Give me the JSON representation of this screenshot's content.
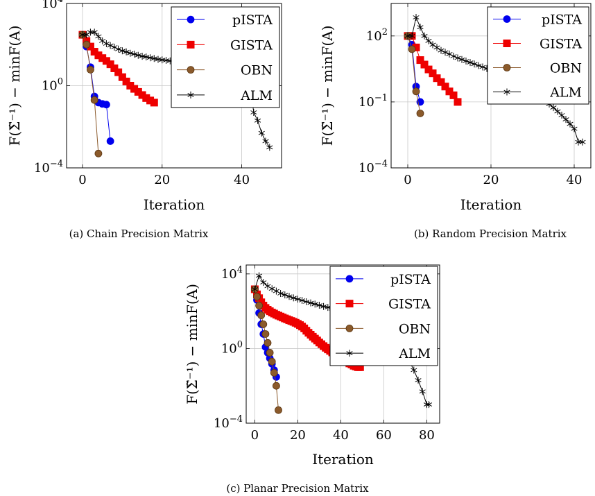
{
  "chart_data": [
    {
      "type": "line",
      "caption": "(a) Chain Precision Matrix",
      "xlabel": "Iteration",
      "ylabel": "F(Σ̃⁻¹) − minF(A)",
      "yscale": "log",
      "xlim": [
        -4,
        50
      ],
      "ylim": [
        0.0001,
        10000
      ],
      "xticks": [
        0,
        20,
        40
      ],
      "yticks": [
        0.0001,
        1,
        10000
      ],
      "grid": true,
      "legend_position": "top-right",
      "series": [
        {
          "name": "pISTA",
          "color": "#0000ee",
          "marker": "circle",
          "x": [
            0,
            1,
            2,
            3,
            4,
            5,
            6,
            7
          ],
          "y": [
            300,
            80,
            8,
            0.3,
            0.15,
            0.13,
            0.12,
            0.002
          ]
        },
        {
          "name": "GISTA",
          "color": "#ee0000",
          "marker": "square",
          "x": [
            0,
            1,
            2,
            3,
            4,
            5,
            6,
            7,
            8,
            9,
            10,
            11,
            12,
            13,
            14,
            15,
            16,
            17,
            18
          ],
          "y": [
            300,
            150,
            80,
            45,
            30,
            22,
            16,
            11,
            7,
            4.5,
            2.6,
            1.6,
            1.0,
            0.7,
            0.5,
            0.35,
            0.25,
            0.19,
            0.15
          ]
        },
        {
          "name": "OBN",
          "color": "#8b5a2b",
          "marker": "circle",
          "x": [
            0,
            1,
            2,
            3,
            4
          ],
          "y": [
            300,
            100,
            6,
            0.2,
            0.0005
          ]
        },
        {
          "name": "ALM",
          "color": "#000000",
          "marker": "star",
          "x": [
            0,
            1,
            2,
            3,
            4,
            5,
            6,
            7,
            8,
            9,
            10,
            11,
            12,
            13,
            14,
            15,
            16,
            17,
            18,
            19,
            20,
            21,
            22,
            23,
            24,
            25,
            26,
            27,
            28,
            29,
            30,
            31,
            32,
            33,
            34,
            35,
            36,
            37,
            38,
            39,
            40,
            41,
            42,
            43,
            44,
            45,
            46,
            47
          ],
          "y": [
            300,
            300,
            400,
            400,
            250,
            150,
            110,
            90,
            75,
            60,
            50,
            44,
            38,
            34,
            30,
            27,
            25,
            23,
            21,
            19,
            18,
            17,
            16,
            15,
            14,
            13,
            12,
            11,
            10,
            9.5,
            9,
            8.5,
            8,
            7.5,
            7,
            6.5,
            6,
            5.5,
            5,
            4.5,
            4,
            3,
            2,
            0.05,
            0.02,
            0.005,
            0.002,
            0.001
          ]
        }
      ]
    },
    {
      "type": "line",
      "caption": "(b) Random Precision Matrix",
      "xlabel": "Iteration",
      "ylabel": "F(Σ̃⁻¹) − minF(A)",
      "yscale": "log",
      "xlim": [
        -4,
        44
      ],
      "ylim": [
        0.0001,
        3000
      ],
      "xticks": [
        0,
        20,
        40
      ],
      "yticks": [
        0.0001,
        0.1,
        100
      ],
      "grid": true,
      "legend_position": "top-right",
      "series": [
        {
          "name": "pISTA",
          "color": "#0000ee",
          "marker": "circle",
          "x": [
            0,
            1,
            2,
            3
          ],
          "y": [
            100,
            40,
            0.5,
            0.1
          ]
        },
        {
          "name": "GISTA",
          "color": "#ee0000",
          "marker": "square",
          "x": [
            0,
            1,
            2,
            3,
            4,
            5,
            6,
            7,
            8,
            9,
            10,
            11,
            12
          ],
          "y": [
            100,
            100,
            30,
            8,
            5,
            3,
            2,
            1.2,
            0.8,
            0.5,
            0.3,
            0.2,
            0.1
          ]
        },
        {
          "name": "OBN",
          "color": "#8b5a2b",
          "marker": "circle",
          "x": [
            0,
            1,
            2,
            3
          ],
          "y": [
            100,
            25,
            0.3,
            0.03
          ]
        },
        {
          "name": "ALM",
          "color": "#000000",
          "marker": "star",
          "x": [
            0,
            1,
            2,
            3,
            4,
            5,
            6,
            7,
            8,
            9,
            10,
            11,
            12,
            13,
            14,
            15,
            16,
            17,
            18,
            19,
            20,
            21,
            22,
            23,
            24,
            25,
            26,
            27,
            28,
            29,
            30,
            31,
            32,
            33,
            34,
            35,
            36,
            37,
            38,
            39,
            40,
            41,
            42
          ],
          "y": [
            100,
            100,
            700,
            250,
            100,
            60,
            40,
            30,
            22,
            18,
            15,
            12,
            10,
            8.5,
            7.2,
            6.2,
            5.3,
            4.5,
            3.9,
            3.3,
            2.8,
            2.4,
            2.0,
            1.7,
            1.4,
            1.2,
            1.0,
            0.8,
            0.6,
            0.45,
            0.33,
            0.24,
            0.17,
            0.12,
            0.08,
            0.055,
            0.037,
            0.025,
            0.016,
            0.01,
            0.006,
            0.0015,
            0.0015
          ]
        }
      ]
    },
    {
      "type": "line",
      "caption": "(c) Planar Precision Matrix",
      "xlabel": "Iteration",
      "ylabel": "F(Σ̃⁻¹) − minF(A)",
      "yscale": "log",
      "xlim": [
        -4,
        86
      ],
      "ylim": [
        0.0001,
        30000
      ],
      "xticks": [
        0,
        20,
        40,
        60,
        80
      ],
      "yticks": [
        0.0001,
        1,
        10000
      ],
      "grid": true,
      "legend_position": "top-right",
      "series": [
        {
          "name": "pISTA",
          "color": "#0000ee",
          "marker": "circle",
          "x": [
            0,
            1,
            2,
            3,
            4,
            5,
            6,
            7,
            8,
            9,
            10
          ],
          "y": [
            1500,
            400,
            80,
            20,
            6,
            1.2,
            0.6,
            0.3,
            0.15,
            0.07,
            0.03
          ]
        },
        {
          "name": "GISTA",
          "color": "#ee0000",
          "marker": "square",
          "x": [
            0,
            1,
            2,
            3,
            4,
            5,
            6,
            7,
            8,
            9,
            10,
            11,
            12,
            13,
            14,
            15,
            16,
            17,
            18,
            19,
            20,
            21,
            22,
            23,
            24,
            25,
            26,
            27,
            28,
            29,
            30,
            31,
            32,
            33,
            34,
            35,
            36,
            37,
            38,
            39,
            40,
            41,
            42,
            43,
            44,
            45,
            46,
            47,
            48,
            49
          ],
          "y": [
            1500,
            800,
            500,
            300,
            200,
            150,
            120,
            100,
            85,
            75,
            65,
            58,
            52,
            46,
            41,
            37,
            33,
            30,
            27,
            24,
            21,
            18,
            15,
            12,
            9,
            7,
            5.5,
            4.3,
            3.4,
            2.7,
            2.1,
            1.7,
            1.35,
            1.1,
            0.9,
            0.75,
            0.62,
            0.52,
            0.44,
            0.37,
            0.31,
            0.26,
            0.22,
            0.19,
            0.16,
            0.14,
            0.12,
            0.11,
            0.1,
            0.1
          ]
        },
        {
          "name": "OBN",
          "color": "#8b5a2b",
          "marker": "circle",
          "x": [
            0,
            1,
            2,
            3,
            4,
            5,
            6,
            7,
            8,
            9,
            10,
            11
          ],
          "y": [
            1500,
            600,
            200,
            60,
            20,
            6,
            2,
            0.6,
            0.2,
            0.05,
            0.01,
            0.0005
          ]
        },
        {
          "name": "ALM",
          "color": "#000000",
          "marker": "star",
          "x": [
            0,
            2,
            4,
            6,
            8,
            10,
            12,
            14,
            16,
            18,
            20,
            22,
            24,
            26,
            28,
            30,
            32,
            34,
            36,
            38,
            40,
            42,
            44,
            46,
            48,
            50,
            52,
            54,
            56,
            58,
            60,
            62,
            64,
            66,
            68,
            70,
            72,
            74,
            76,
            78,
            80,
            81
          ],
          "y": [
            1500,
            8000,
            3500,
            2200,
            1600,
            1200,
            900,
            750,
            620,
            520,
            440,
            380,
            320,
            280,
            240,
            210,
            180,
            160,
            140,
            120,
            105,
            90,
            78,
            66,
            55,
            45,
            36,
            28,
            21,
            15,
            10,
            6.5,
            4,
            2.2,
            1.1,
            0.5,
            0.2,
            0.07,
            0.02,
            0.005,
            0.001,
            0.001
          ]
        }
      ]
    }
  ]
}
